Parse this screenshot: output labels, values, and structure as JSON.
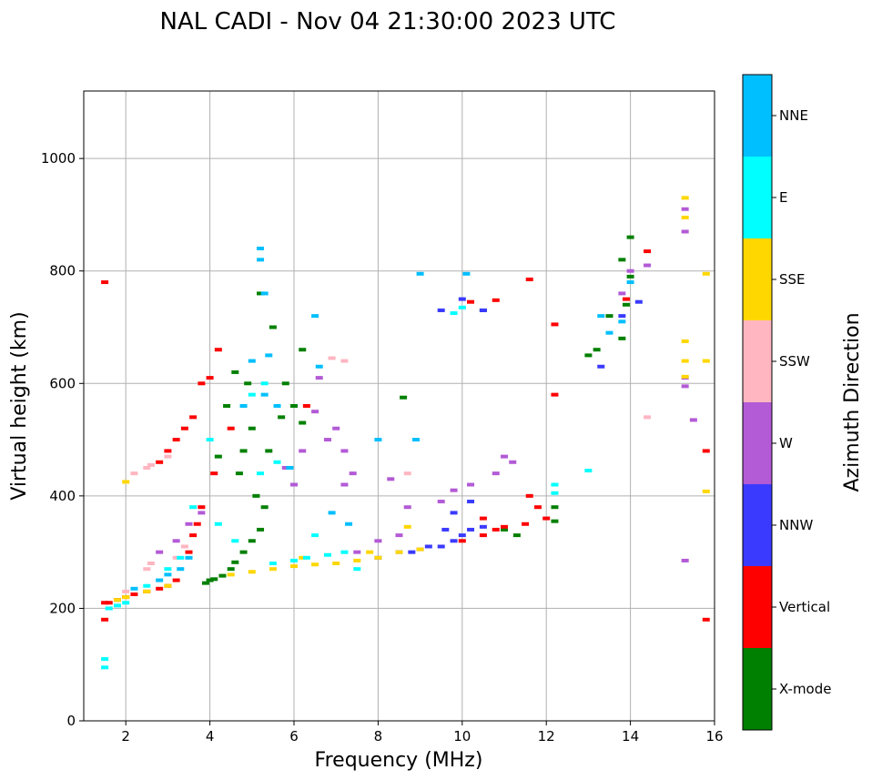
{
  "chart_data": {
    "type": "scatter",
    "title": "NAL CADI - Nov 04 21:30:00 2023 UTC",
    "xlabel": "Frequency (MHz)",
    "ylabel": "Virtual height (km)",
    "xlim": [
      1,
      16
    ],
    "ylim": [
      0,
      1120
    ],
    "xticks": [
      2,
      4,
      6,
      8,
      10,
      12,
      14,
      16
    ],
    "yticks": [
      0,
      200,
      400,
      600,
      800,
      1000
    ],
    "grid": true,
    "colorbar": {
      "label": "Azimuth Direction",
      "categories": [
        {
          "name": "X-mode",
          "color": "#008000"
        },
        {
          "name": "Vertical",
          "color": "#ff0000"
        },
        {
          "name": "NNW",
          "color": "#3a3aff"
        },
        {
          "name": "W",
          "color": "#b35ad6"
        },
        {
          "name": "SSW",
          "color": "#ffb6c1"
        },
        {
          "name": "SSE",
          "color": "#ffd700"
        },
        {
          "name": "E",
          "color": "#00ffff"
        },
        {
          "name": "NNE",
          "color": "#00bfff"
        }
      ]
    },
    "series": [
      {
        "name": "X-mode",
        "points": [
          [
            3.9,
            245
          ],
          [
            4.0,
            250
          ],
          [
            4.1,
            252
          ],
          [
            4.3,
            258
          ],
          [
            4.5,
            270
          ],
          [
            4.6,
            282
          ],
          [
            4.8,
            300
          ],
          [
            5.0,
            320
          ],
          [
            5.2,
            340
          ],
          [
            12.2,
            355
          ],
          [
            12.2,
            380
          ],
          [
            11.0,
            340
          ],
          [
            11.3,
            330
          ],
          [
            13.0,
            650
          ],
          [
            13.2,
            660
          ],
          [
            13.5,
            720
          ],
          [
            13.8,
            680
          ],
          [
            13.8,
            820
          ],
          [
            13.9,
            740
          ],
          [
            14.0,
            860
          ],
          [
            14.0,
            790
          ],
          [
            5.2,
            760
          ],
          [
            5.5,
            700
          ],
          [
            5.8,
            600
          ],
          [
            6.0,
            560
          ],
          [
            6.2,
            530
          ],
          [
            5.0,
            520
          ],
          [
            4.8,
            480
          ],
          [
            4.4,
            560
          ],
          [
            4.6,
            620
          ],
          [
            4.9,
            600
          ],
          [
            5.4,
            480
          ],
          [
            5.1,
            400
          ],
          [
            10.5,
            730
          ],
          [
            8.6,
            575
          ],
          [
            6.2,
            660
          ],
          [
            5.7,
            540
          ],
          [
            4.7,
            440
          ],
          [
            5.3,
            380
          ],
          [
            4.2,
            470
          ]
        ]
      },
      {
        "name": "Vertical",
        "points": [
          [
            1.5,
            210
          ],
          [
            1.5,
            180
          ],
          [
            1.6,
            210
          ],
          [
            1.8,
            215
          ],
          [
            2.0,
            220
          ],
          [
            2.2,
            225
          ],
          [
            2.5,
            230
          ],
          [
            2.8,
            235
          ],
          [
            3.0,
            240
          ],
          [
            3.2,
            250
          ],
          [
            3.5,
            300
          ],
          [
            3.6,
            330
          ],
          [
            3.7,
            350
          ],
          [
            3.8,
            380
          ],
          [
            2.8,
            460
          ],
          [
            3.0,
            480
          ],
          [
            3.2,
            500
          ],
          [
            3.4,
            520
          ],
          [
            3.6,
            540
          ],
          [
            3.8,
            600
          ],
          [
            4.0,
            610
          ],
          [
            4.2,
            660
          ],
          [
            10.0,
            320
          ],
          [
            10.5,
            330
          ],
          [
            10.8,
            340
          ],
          [
            11.0,
            345
          ],
          [
            11.5,
            350
          ],
          [
            11.8,
            380
          ],
          [
            11.6,
            400
          ],
          [
            12.0,
            360
          ],
          [
            10.2,
            745
          ],
          [
            10.8,
            748
          ],
          [
            11.6,
            785
          ],
          [
            13.9,
            750
          ],
          [
            14.4,
            835
          ],
          [
            15.8,
            480
          ],
          [
            15.8,
            180
          ],
          [
            1.5,
            780
          ],
          [
            4.5,
            520
          ],
          [
            4.1,
            440
          ],
          [
            10.5,
            360
          ],
          [
            12.2,
            705
          ],
          [
            12.2,
            580
          ],
          [
            6.3,
            560
          ]
        ]
      },
      {
        "name": "NNW",
        "points": [
          [
            8.0,
            290
          ],
          [
            8.5,
            300
          ],
          [
            9.0,
            305
          ],
          [
            9.5,
            310
          ],
          [
            9.8,
            320
          ],
          [
            10.0,
            330
          ],
          [
            10.2,
            340
          ],
          [
            10.5,
            345
          ],
          [
            10.0,
            750
          ],
          [
            10.5,
            730
          ],
          [
            13.3,
            630
          ],
          [
            13.8,
            720
          ],
          [
            14.2,
            745
          ],
          [
            9.5,
            730
          ],
          [
            9.2,
            310
          ],
          [
            8.8,
            300
          ],
          [
            9.8,
            370
          ],
          [
            10.2,
            390
          ],
          [
            9.6,
            340
          ]
        ]
      },
      {
        "name": "W",
        "points": [
          [
            2.8,
            300
          ],
          [
            3.2,
            320
          ],
          [
            3.5,
            350
          ],
          [
            3.8,
            370
          ],
          [
            6.8,
            500
          ],
          [
            7.0,
            520
          ],
          [
            7.2,
            480
          ],
          [
            7.4,
            440
          ],
          [
            6.5,
            550
          ],
          [
            6.2,
            480
          ],
          [
            9.5,
            390
          ],
          [
            9.8,
            410
          ],
          [
            10.2,
            420
          ],
          [
            10.8,
            440
          ],
          [
            11.0,
            470
          ],
          [
            11.2,
            460
          ],
          [
            13.8,
            760
          ],
          [
            14.0,
            800
          ],
          [
            14.4,
            810
          ],
          [
            15.3,
            910
          ],
          [
            15.3,
            870
          ],
          [
            15.3,
            610
          ],
          [
            15.3,
            595
          ],
          [
            15.5,
            535
          ],
          [
            15.3,
            285
          ],
          [
            7.5,
            300
          ],
          [
            8.0,
            320
          ],
          [
            8.5,
            330
          ],
          [
            8.7,
            380
          ],
          [
            7.2,
            420
          ],
          [
            6.6,
            610
          ],
          [
            8.3,
            430
          ],
          [
            6.0,
            420
          ],
          [
            5.8,
            450
          ]
        ]
      },
      {
        "name": "SSW",
        "points": [
          [
            2.2,
            440
          ],
          [
            2.5,
            450
          ],
          [
            2.6,
            455
          ],
          [
            3.0,
            470
          ],
          [
            2.0,
            230
          ],
          [
            2.5,
            270
          ],
          [
            7.2,
            640
          ],
          [
            6.9,
            645
          ],
          [
            8.7,
            440
          ],
          [
            14.4,
            540
          ],
          [
            2.6,
            280
          ],
          [
            3.2,
            290
          ],
          [
            3.4,
            310
          ]
        ]
      },
      {
        "name": "SSE",
        "points": [
          [
            1.8,
            215
          ],
          [
            2.0,
            220
          ],
          [
            2.5,
            230
          ],
          [
            3.0,
            240
          ],
          [
            4.5,
            260
          ],
          [
            5.0,
            265
          ],
          [
            5.5,
            270
          ],
          [
            6.0,
            275
          ],
          [
            6.5,
            278
          ],
          [
            7.0,
            280
          ],
          [
            7.5,
            285
          ],
          [
            8.0,
            290
          ],
          [
            8.5,
            300
          ],
          [
            9.0,
            305
          ],
          [
            15.3,
            930
          ],
          [
            15.3,
            895
          ],
          [
            15.3,
            675
          ],
          [
            15.3,
            640
          ],
          [
            15.3,
            612
          ],
          [
            15.8,
            795
          ],
          [
            15.8,
            640
          ],
          [
            15.8,
            408
          ],
          [
            2.0,
            425
          ],
          [
            6.2,
            290
          ],
          [
            7.8,
            300
          ],
          [
            8.7,
            345
          ]
        ]
      },
      {
        "name": "E",
        "points": [
          [
            1.5,
            95
          ],
          [
            1.5,
            110
          ],
          [
            1.6,
            200
          ],
          [
            1.8,
            205
          ],
          [
            2.0,
            210
          ],
          [
            2.5,
            240
          ],
          [
            3.0,
            270
          ],
          [
            3.3,
            290
          ],
          [
            5.5,
            280
          ],
          [
            6.0,
            285
          ],
          [
            6.3,
            290
          ],
          [
            6.8,
            295
          ],
          [
            7.2,
            300
          ],
          [
            4.6,
            320
          ],
          [
            5.2,
            440
          ],
          [
            5.6,
            460
          ],
          [
            4.0,
            500
          ],
          [
            5.0,
            580
          ],
          [
            5.3,
            600
          ],
          [
            10.0,
            735
          ],
          [
            9.8,
            725
          ],
          [
            12.2,
            420
          ],
          [
            12.2,
            405
          ],
          [
            13.0,
            445
          ],
          [
            7.5,
            270
          ],
          [
            4.2,
            350
          ],
          [
            3.6,
            380
          ],
          [
            6.5,
            330
          ]
        ]
      },
      {
        "name": "NNE",
        "points": [
          [
            5.2,
            840
          ],
          [
            5.2,
            820
          ],
          [
            5.3,
            760
          ],
          [
            5.0,
            640
          ],
          [
            5.3,
            580
          ],
          [
            5.6,
            560
          ],
          [
            5.9,
            450
          ],
          [
            6.5,
            720
          ],
          [
            6.6,
            630
          ],
          [
            8.0,
            500
          ],
          [
            9.0,
            795
          ],
          [
            10.1,
            795
          ],
          [
            13.3,
            720
          ],
          [
            13.5,
            690
          ],
          [
            13.8,
            710
          ],
          [
            14.0,
            780
          ],
          [
            3.0,
            260
          ],
          [
            3.3,
            270
          ],
          [
            3.5,
            290
          ],
          [
            2.8,
            250
          ],
          [
            2.2,
            235
          ],
          [
            5.4,
            650
          ],
          [
            4.8,
            560
          ],
          [
            6.9,
            370
          ],
          [
            7.3,
            350
          ],
          [
            8.9,
            500
          ]
        ]
      }
    ]
  }
}
